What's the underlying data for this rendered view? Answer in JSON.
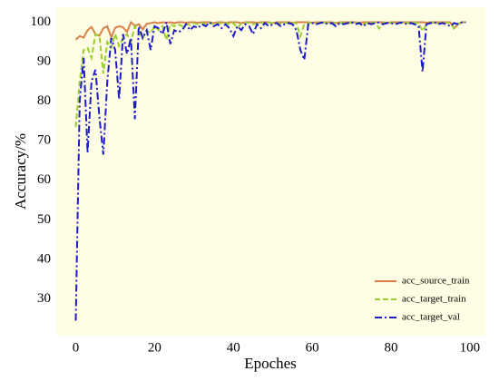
{
  "chart_data": {
    "type": "line",
    "xlabel": "Epoches",
    "ylabel": "Accuracy/%",
    "x": [
      0,
      1,
      2,
      3,
      4,
      5,
      6,
      7,
      8,
      9,
      10,
      11,
      12,
      13,
      14,
      15,
      16,
      17,
      18,
      19,
      20,
      21,
      22,
      23,
      24,
      25,
      26,
      27,
      28,
      29,
      30,
      31,
      32,
      33,
      34,
      35,
      36,
      37,
      38,
      39,
      40,
      41,
      42,
      43,
      44,
      45,
      46,
      47,
      48,
      49,
      50,
      51,
      52,
      53,
      54,
      55,
      56,
      57,
      58,
      59,
      60,
      61,
      62,
      63,
      64,
      65,
      66,
      67,
      68,
      69,
      70,
      71,
      72,
      73,
      74,
      75,
      76,
      77,
      78,
      79,
      80,
      81,
      82,
      83,
      84,
      85,
      86,
      87,
      88,
      89,
      90,
      91,
      92,
      93,
      94,
      95,
      96,
      97,
      98,
      99
    ],
    "series": [
      {
        "name": "acc_source_train",
        "color": "#d9804a",
        "linestyle": "solid",
        "values": [
          95.6,
          96.5,
          96.1,
          98,
          98.8,
          97,
          96.6,
          98.5,
          99,
          96.2,
          98.6,
          99,
          98.7,
          97.6,
          100,
          99.1,
          99.5,
          98.2,
          99.6,
          99.8,
          100,
          99.8,
          100,
          99.9,
          100,
          99.8,
          100,
          100,
          99.9,
          100,
          100,
          99.9,
          100,
          100,
          100,
          99.8,
          100,
          100,
          99.9,
          100,
          100,
          100,
          99.8,
          100,
          100,
          100,
          99.9,
          100,
          100,
          100,
          99.8,
          100,
          100,
          100,
          100,
          99.9,
          100,
          100,
          100,
          100,
          99.9,
          100,
          100,
          100,
          100,
          100,
          99.8,
          100,
          100,
          100,
          100,
          100,
          99.9,
          100,
          100,
          100,
          100,
          100,
          100,
          99.9,
          100,
          100,
          100,
          100,
          100,
          100,
          100,
          100,
          100,
          99.9,
          100,
          100,
          100,
          100,
          100,
          100,
          98.4,
          99.5,
          100,
          100
        ]
      },
      {
        "name": "acc_target_train",
        "color": "#9acd32",
        "linestyle": "dashed",
        "values": [
          73.5,
          85,
          93,
          93.5,
          91,
          97,
          96.5,
          87,
          95,
          93.5,
          97,
          94,
          96,
          97,
          95,
          99,
          97.5,
          96,
          98,
          97.2,
          99,
          98,
          99,
          95.5,
          99.5,
          99,
          99.5,
          99,
          99.6,
          99.3,
          99.8,
          99.5,
          99.8,
          99.6,
          99.9,
          99.5,
          99.8,
          99.7,
          99.9,
          99.5,
          99.8,
          98.6,
          99.7,
          99.8,
          99.9,
          99.5,
          99.8,
          99.9,
          99.7,
          99.9,
          99.8,
          99.9,
          99.6,
          99.9,
          99.8,
          99.9,
          99.7,
          96.5,
          99.5,
          99.8,
          99.9,
          99.7,
          99.8,
          99.9,
          99.8,
          99.6,
          99.9,
          99.8,
          99.9,
          99.7,
          99.9,
          99.8,
          99.9,
          99.5,
          99.9,
          99.8,
          99.9,
          98.4,
          99.9,
          99.8,
          99.9,
          99.7,
          99.9,
          99.8,
          99.9,
          99.7,
          99.9,
          99.8,
          97.8,
          99.5,
          99.8,
          99.9,
          99.7,
          99.9,
          99.8,
          99.9,
          98.5,
          99.7,
          99.9,
          100
        ]
      },
      {
        "name": "acc_target_val",
        "color": "#1c1cc8",
        "linestyle": "dashdot",
        "values": [
          24.5,
          80,
          91,
          67,
          85,
          88,
          76,
          66.5,
          85,
          96,
          93,
          80.5,
          97,
          92,
          96,
          75.5,
          99,
          96,
          98,
          93,
          99,
          98.5,
          97,
          100,
          94.5,
          98,
          97.5,
          98,
          99.5,
          98,
          99,
          98.5,
          99.5,
          99,
          100,
          99,
          99.5,
          98.5,
          99.5,
          98.5,
          96.5,
          99,
          98,
          99.5,
          99,
          97,
          99.5,
          98.5,
          99.8,
          99,
          99.5,
          99.8,
          99,
          99.5,
          99.8,
          99.5,
          98,
          93,
          90.5,
          99.5,
          99.8,
          99.5,
          99.8,
          100,
          99.5,
          99.8,
          99,
          99.8,
          99.5,
          99.8,
          100,
          99.5,
          99.8,
          99,
          99.8,
          99.5,
          99.8,
          100,
          99.5,
          99.8,
          99.8,
          99.5,
          99.8,
          100,
          99.5,
          99.8,
          99.5,
          99,
          87.5,
          99.5,
          99.8,
          100,
          99.5,
          99.8,
          99.5,
          99,
          99.8,
          99.5,
          100,
          100
        ]
      }
    ],
    "xlim": [
      -4.95,
      103.95
    ],
    "ylim": [
      20.7,
      103.8
    ],
    "xticks": [
      0,
      20,
      40,
      60,
      80,
      100
    ],
    "yticks": [
      30,
      40,
      50,
      60,
      70,
      80,
      90,
      100
    ],
    "grid": false,
    "legend": "lower right"
  }
}
